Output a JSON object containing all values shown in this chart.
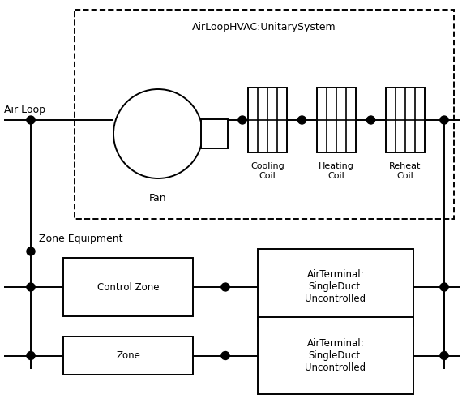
{
  "fig_width": 5.86,
  "fig_height": 4.97,
  "dpi": 100,
  "bg_color": "#ffffff",
  "line_color": "#000000",
  "title_unitary": "AirLoopHVAC:UnitarySystem",
  "label_fan": "Fan",
  "label_cooling": "Cooling\nCoil",
  "label_heating": "Heating\nCoil",
  "label_reheat": "Reheat\nCoil",
  "label_airloop": "Air Loop",
  "label_zone_equip": "Zone Equipment",
  "label_control_zone": "Control Zone",
  "label_zone": "Zone",
  "label_terminal1": "AirTerminal:\nSingleDuct:\nUncontrolled",
  "label_terminal2": "AirTerminal:\nSingleDuct:\nUncontrolled",
  "font_size": 9,
  "font_size_small": 8.5
}
